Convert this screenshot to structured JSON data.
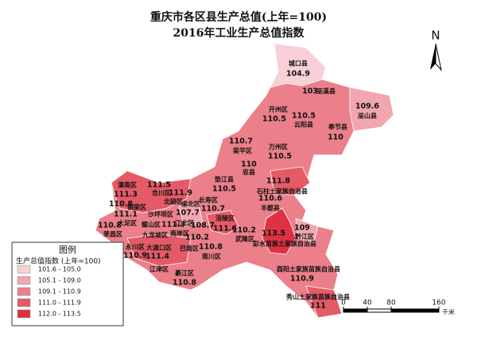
{
  "title": [
    "重庆市各区县生产总值(上年=100)",
    "2016年工业生产总值指数"
  ],
  "north": "N",
  "legend": {
    "title": "图例",
    "subtitle": "生产总值指数 (上年=100)",
    "classes": [
      {
        "label": "101.6 - 105.0",
        "color": "#f8d0d5"
      },
      {
        "label": "105.1 - 109.0",
        "color": "#f2a6ae"
      },
      {
        "label": "109.1 - 110.9",
        "color": "#eb7f8a"
      },
      {
        "label": "111.0 - 111.9",
        "color": "#e45a67"
      },
      {
        "label": "112.0 - 113.5",
        "color": "#dc3243"
      }
    ]
  },
  "scale": {
    "ticks": [
      0,
      40,
      80,
      160
    ],
    "unit": "千米"
  },
  "districts": [
    {
      "name": "城口县",
      "value": 104.9
    },
    {
      "name": "巫溪县",
      "value": 103
    },
    {
      "name": "开州区",
      "value": 110.5
    },
    {
      "name": "云阳县",
      "value": 110.5
    },
    {
      "name": "巫山县",
      "value": 109.6
    },
    {
      "name": "奉节县",
      "value": 110
    },
    {
      "name": "梁平区",
      "value": 110.7
    },
    {
      "name": "万州区",
      "value": 110.5
    },
    {
      "name": "忠县",
      "value": 110
    },
    {
      "name": "垫江县",
      "value": 110.5
    },
    {
      "name": "石柱土家族自治县",
      "value": 111.8
    },
    {
      "name": "丰都县",
      "value": 110.6
    },
    {
      "name": "潼南区",
      "value": 111.3
    },
    {
      "name": "合川区",
      "value": 111.5
    },
    {
      "name": "北碚区",
      "value": 111.9
    },
    {
      "name": "铜梁区",
      "value": 110.8
    },
    {
      "name": "大足区",
      "value": 111.1
    },
    {
      "name": "荣昌区",
      "value": 110.8
    },
    {
      "name": "沙坪坝区"
    },
    {
      "name": "璧山区",
      "value": 111.3
    },
    {
      "name": "渝北区",
      "value": 107.7
    },
    {
      "name": "江北区",
      "value": 108.7
    },
    {
      "name": "长寿区",
      "value": 110.7
    },
    {
      "name": "涪陵区",
      "value": 111.6
    },
    {
      "name": "九龙坡区"
    },
    {
      "name": "南岸区",
      "value": 110.2
    },
    {
      "name": "巴南区"
    },
    {
      "name": "南川区",
      "value": 110.8
    },
    {
      "name": "永川区",
      "value": 110.9
    },
    {
      "name": "大渡口区",
      "value": 111.4
    },
    {
      "name": "江津区"
    },
    {
      "name": "綦江区",
      "value": 110.8
    },
    {
      "name": "武隆区",
      "value": 110.2
    },
    {
      "name": "彭水苗族土家族自治县",
      "value": 113.5
    },
    {
      "name": "黔江区",
      "value": 109
    },
    {
      "name": "酉阳土家族苗族自治县",
      "value": 110.9
    },
    {
      "name": "秀山土家族苗族自治县",
      "value": 111
    }
  ]
}
